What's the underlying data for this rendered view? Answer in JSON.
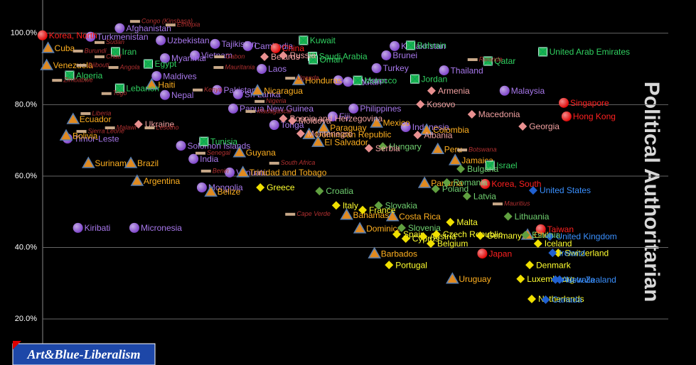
{
  "chart_data": {
    "type": "scatter",
    "title": "Political Authoritarian",
    "logo": "Art&Blue-Liberalism",
    "xlim": [
      0,
      100
    ],
    "ylim": [
      7.1,
      109.3
    ],
    "yticks": [
      {
        "value": 20,
        "label": "20.0%"
      },
      {
        "value": 40,
        "label": "40.0%"
      },
      {
        "value": 60,
        "label": "60.0%"
      },
      {
        "value": 80,
        "label": "80.0%"
      },
      {
        "value": 100,
        "label": "100.0%"
      }
    ],
    "grid": true,
    "series": [
      {
        "marker": "circle",
        "color": "#7a3fc8",
        "label_color": "#a878ec",
        "labels": [
          "Turkmenistan",
          "Uzbekistan",
          "Afghanistan",
          "Vietnam",
          "Tajikistan",
          "Cambodia",
          "Laos",
          "Myanmar",
          "Maldives",
          "Pakistan",
          "Sri Lanka",
          "Papua New Guinea",
          "Tonga",
          "Nepal",
          "Solomon Islands",
          "India",
          "Mongolia",
          "Vanuatu",
          "Kiribati",
          "Micronesia",
          "Timor-Leste",
          "Kazakhstan",
          "Brunei",
          "Kyrgyzstan",
          "Bhutan",
          "Fiji",
          "Philippines",
          "Turkey",
          "Thailand",
          "Malaysia",
          "Indonesia"
        ],
        "x": [
          13.0,
          23.1,
          17.2,
          28.0,
          30.9,
          35.6,
          37.6,
          23.7,
          22.5,
          31.2,
          34.2,
          33.5,
          39.4,
          23.7,
          26.0,
          27.8,
          29.0,
          33.0,
          11.2,
          19.3,
          9.7,
          56.7,
          55.5,
          48.6,
          50.0,
          47.8,
          50.8,
          54.1,
          63.8,
          72.5,
          58.3
        ],
        "values": [
          99.0,
          98.0,
          101.4,
          93.8,
          97.0,
          96.4,
          90.0,
          93.0,
          88.0,
          84.1,
          82.9,
          78.9,
          74.3,
          82.7,
          68.5,
          64.8,
          56.8,
          61.0,
          45.5,
          45.5,
          70.5,
          96.4,
          93.8,
          86.8,
          86.4,
          76.7,
          78.9,
          90.2,
          89.6,
          83.9,
          73.7
        ]
      },
      {
        "marker": "circle",
        "color": "#e00000",
        "label_color": "#ff2020",
        "labels": [
          "Korea, North",
          "China",
          "Singapore",
          "Hong Kong",
          "Korea, South",
          "Taiwan",
          "Japan"
        ],
        "x": [
          6.1,
          39.6,
          81.0,
          81.4,
          69.7,
          77.7,
          69.3
        ],
        "values": [
          99.4,
          95.8,
          80.5,
          76.7,
          57.8,
          45.1,
          38.3
        ]
      },
      {
        "marker": "triangle",
        "color": "#e08a20",
        "label_color": "#ffb020",
        "labels": [
          "Cuba",
          "Venezuela",
          "Ecuador",
          "Bolivia",
          "Suriname",
          "Brazil",
          "Argentina",
          "Guyana",
          "Trinidad and Tobago",
          "Belize",
          "Nicaragua",
          "Haiti",
          "Honduras",
          "Dominican Republic",
          "Colombia",
          "Peru",
          "El Salvador",
          "Mexico",
          "Jamaica",
          "Costa Rica",
          "Chile",
          "Barbados",
          "Uruguay",
          "Bahamas",
          "Dominica",
          "Paraguay",
          "Panama"
        ],
        "x": [
          6.9,
          6.7,
          10.5,
          9.5,
          12.7,
          18.8,
          19.7,
          34.4,
          34.9,
          30.3,
          37.0,
          21.8,
          42.9,
          44.4,
          61.3,
          62.9,
          45.7,
          54.1,
          65.4,
          56.4,
          75.8,
          53.8,
          65.0,
          49.8,
          51.7,
          46.5,
          61.0
        ],
        "values": [
          95.8,
          91.0,
          75.9,
          71.3,
          63.6,
          63.6,
          58.6,
          66.6,
          61.0,
          55.6,
          83.9,
          85.6,
          86.8,
          71.7,
          72.9,
          67.5,
          69.5,
          74.9,
          64.4,
          48.7,
          43.5,
          38.3,
          31.2,
          49.1,
          45.3,
          73.5,
          58.0
        ]
      },
      {
        "marker": "square",
        "color": "#20b050",
        "label_color": "#30d060",
        "labels": [
          "Kuwait",
          "Saudi Arabia",
          "Oman",
          "Bahrain",
          "Qatar",
          "United Arab Emirates",
          "Jordan",
          "Morocco",
          "Egypt",
          "Algeria",
          "Lebanon",
          "Iran",
          "Tunisia",
          "Israel"
        ],
        "x": [
          43.6,
          44.9,
          45.0,
          59.0,
          70.1,
          78.0,
          59.6,
          51.4,
          21.3,
          10.0,
          17.2,
          16.6,
          29.3,
          70.4
        ],
        "values": [
          98.0,
          93.5,
          92.6,
          96.6,
          92.2,
          94.8,
          87.2,
          86.8,
          91.4,
          88.2,
          84.6,
          94.8,
          69.7,
          63.0
        ]
      },
      {
        "marker": "diamond",
        "color": "#f0e000",
        "label_color": "#ffff30",
        "labels": [
          "Greece",
          "Italy",
          "France",
          "Spain",
          "Cyprus",
          "Portugal",
          "Malta",
          "Austria",
          "Czech Republic",
          "Belgium",
          "Germany",
          "Denmark",
          "Luxembourg",
          "Netherlands",
          "Iceland",
          "Switzerland"
        ],
        "x": [
          37.4,
          48.3,
          52.1,
          57.0,
          58.3,
          55.9,
          64.7,
          60.8,
          62.7,
          61.9,
          69.0,
          76.1,
          74.8,
          76.4,
          77.3,
          80.2
        ],
        "values": [
          56.8,
          51.8,
          50.5,
          43.7,
          42.5,
          35.1,
          47.1,
          43.1,
          43.7,
          41.1,
          43.3,
          35.1,
          31.2,
          25.6,
          41.1,
          38.5
        ]
      },
      {
        "marker": "diamond",
        "color": "#2060d0",
        "label_color": "#3a90ff",
        "labels": [
          "United States",
          "United Kingdom",
          "Ireland",
          "New Zealand",
          "Australia",
          "Canada"
        ],
        "x": [
          76.6,
          79.0,
          79.4,
          80.4,
          79.8,
          78.4
        ],
        "values": [
          56.0,
          43.1,
          38.5,
          31.0,
          31.0,
          25.4
        ]
      },
      {
        "marker": "diamond",
        "color": "#60a040",
        "label_color": "#70d070",
        "labels": [
          "Croatia",
          "Slovakia",
          "Hungary",
          "Bulgaria",
          "Romania",
          "Poland",
          "Latvia",
          "Lithuania",
          "Estonia",
          "Slovenia"
        ],
        "x": [
          45.9,
          54.4,
          55.0,
          66.2,
          64.2,
          62.6,
          67.1,
          73.0,
          75.5,
          57.7
        ],
        "values": [
          55.8,
          51.8,
          68.3,
          62.0,
          58.2,
          56.4,
          54.4,
          48.7,
          43.5,
          45.5
        ]
      },
      {
        "marker": "diamond",
        "color": "#e89090",
        "label_color": "#f0a0a0",
        "labels": [
          "Belarus",
          "Russia",
          "Armenia",
          "Kosovo",
          "Macedonia",
          "Georgia",
          "Serbia",
          "Albania",
          "Montenegro",
          "Bosnia and Herzegovina",
          "Ukraine",
          "Moldova"
        ],
        "x": [
          38.0,
          40.7,
          62.0,
          60.4,
          67.8,
          75.1,
          53.0,
          60.0,
          43.2,
          40.7,
          19.9,
          42.0
        ],
        "values": [
          93.4,
          93.8,
          83.9,
          80.1,
          77.3,
          73.9,
          67.8,
          71.5,
          71.9,
          76.1,
          74.5,
          75.5
        ]
      },
      {
        "marker": "dash",
        "color": "#c8a888",
        "label_color": "#b03030",
        "labels": [
          "Sudan",
          "Burundi",
          "Chad",
          "Angola",
          "Djibouti",
          "Zimbabwe",
          "Congo (Kinshasa)",
          "Ethiopia",
          "Togo",
          "Liberia",
          "Sierra Leone",
          "Malawi",
          "Lesotho",
          "Kenya",
          "Gabon",
          "Mauritania",
          "Uganda",
          "Nigeria",
          "Madagascar",
          "South Africa",
          "Senegal",
          "Benin",
          "Cape Verde",
          "Botswana",
          "Rwanda",
          "Mauritius"
        ],
        "x": [
          14.3,
          11.2,
          14.3,
          16.3,
          11.7,
          8.2,
          19.4,
          24.5,
          15.3,
          12.3,
          11.7,
          15.8,
          21.5,
          28.4,
          31.5,
          31.4,
          41.7,
          37.3,
          36.0,
          39.4,
          28.8,
          29.6,
          41.7,
          66.4,
          67.9,
          71.5
        ],
        "values": [
          97.4,
          95.0,
          93.4,
          90.4,
          91.0,
          86.8,
          103.3,
          102.3,
          83.1,
          77.5,
          72.5,
          73.5,
          73.5,
          84.1,
          93.4,
          90.4,
          87.4,
          80.9,
          78.1,
          63.6,
          66.4,
          61.4,
          49.3,
          67.3,
          92.6,
          52.2
        ]
      }
    ]
  }
}
